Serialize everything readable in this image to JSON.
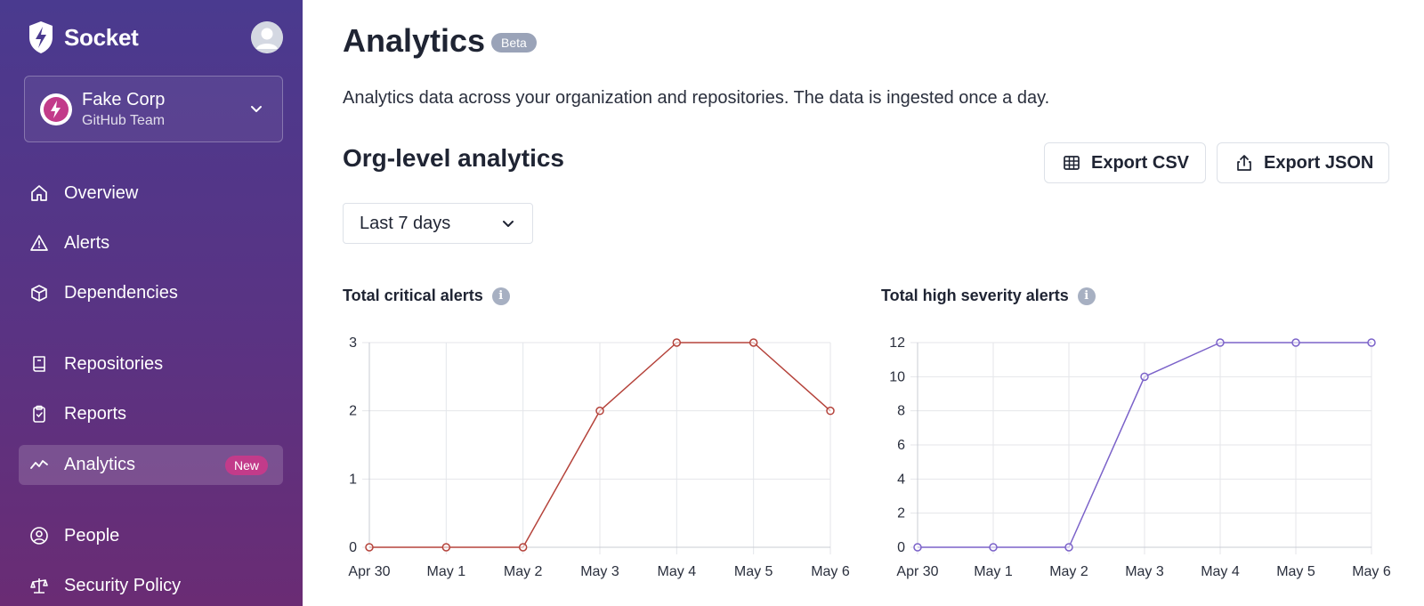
{
  "app": {
    "name": "Socket"
  },
  "org": {
    "name": "Fake Corp",
    "plan": "GitHub Team"
  },
  "nav": [
    {
      "label": "Overview",
      "icon": "home-icon"
    },
    {
      "label": "Alerts",
      "icon": "warning-icon"
    },
    {
      "label": "Dependencies",
      "icon": "package-icon"
    },
    {
      "label": "Repositories",
      "icon": "book-icon"
    },
    {
      "label": "Reports",
      "icon": "clipboard-icon"
    },
    {
      "label": "Analytics",
      "icon": "trend-icon",
      "badge": "New",
      "active": true
    },
    {
      "label": "People",
      "icon": "user-circle-icon"
    },
    {
      "label": "Security Policy",
      "icon": "scale-icon"
    }
  ],
  "header": {
    "title": "Analytics",
    "badge": "Beta",
    "subtitle": "Analytics data across your organization and repositories. The data is ingested once a day."
  },
  "section": {
    "title": "Org-level analytics",
    "export_csv": "Export CSV",
    "export_json": "Export JSON",
    "range": "Last 7 days"
  },
  "colors": {
    "sidebar_top": "#4a3a8f",
    "sidebar_bottom": "#6a2c74",
    "critical": "#b5433b",
    "high": "#7b62c9",
    "new_badge": "#c23b8a"
  },
  "chart_data": [
    {
      "type": "line",
      "title": "Total critical alerts",
      "categories": [
        "Apr 30",
        "May 1",
        "May 2",
        "May 3",
        "May 4",
        "May 5",
        "May 6"
      ],
      "values": [
        0,
        0,
        0,
        2,
        3,
        3,
        2
      ],
      "ylim": [
        0,
        3
      ],
      "yticks": [
        0,
        1,
        2,
        3
      ],
      "grid": true,
      "color": "#b5433b"
    },
    {
      "type": "line",
      "title": "Total high severity alerts",
      "categories": [
        "Apr 30",
        "May 1",
        "May 2",
        "May 3",
        "May 4",
        "May 5",
        "May 6"
      ],
      "values": [
        0,
        0,
        0,
        10,
        12,
        12,
        12
      ],
      "ylim": [
        0,
        12
      ],
      "yticks": [
        0,
        2,
        4,
        6,
        8,
        10,
        12
      ],
      "grid": true,
      "color": "#7b62c9"
    }
  ]
}
